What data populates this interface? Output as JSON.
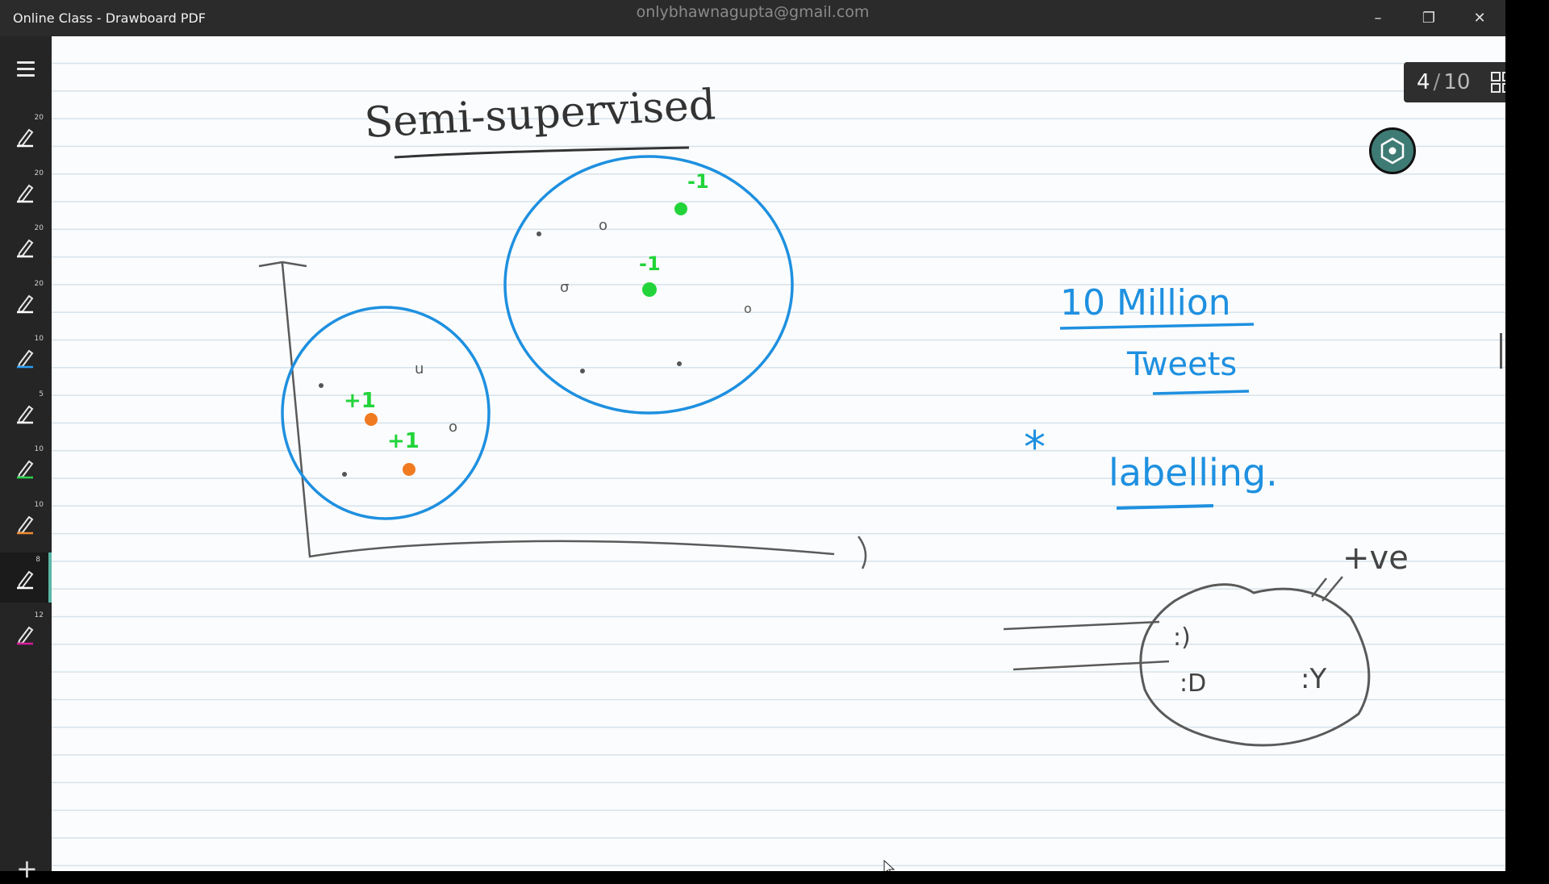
{
  "window": {
    "title": "Online Class - Drawboard PDF",
    "account": "onlybhawnagupta@gmail.com",
    "controls": {
      "minimize": "–",
      "maximize": "❐",
      "close": "✕"
    }
  },
  "sidebar": {
    "menu_icon": "hamburger-icon",
    "pens": [
      {
        "size": "20",
        "color": "#ffffff"
      },
      {
        "size": "20",
        "color": "#ffffff"
      },
      {
        "size": "20",
        "color": "#ffffff"
      },
      {
        "size": "20",
        "color": "#ffffff"
      },
      {
        "size": "10",
        "color": "#2a9df4"
      },
      {
        "size": "5",
        "color": "#ffffff"
      },
      {
        "size": "10",
        "color": "#28d24a"
      },
      {
        "size": "10",
        "color": "#f28a2e"
      },
      {
        "size": "8",
        "color": "#ffffff",
        "active": true
      },
      {
        "size": "12",
        "color": "#d81b9a"
      }
    ],
    "add_label": "+"
  },
  "pager": {
    "current": "4",
    "separator": "/",
    "total": "10"
  },
  "ink": {
    "title": "Semi-supervised",
    "note_line1": "10 Million",
    "note_line2": "Tweets",
    "note_bullet": "*",
    "note_line3": "labelling.",
    "plus_labels": [
      "+1",
      "+1"
    ],
    "minus_labels": [
      "-1",
      "-1"
    ],
    "tone_label": "+ve",
    "emoticons": [
      ":)",
      ":D",
      ":Y"
    ],
    "colors": {
      "blue": "#1e90e0",
      "green": "#22d43a",
      "orange": "#f07a20",
      "gray": "#5a5a5a"
    }
  }
}
